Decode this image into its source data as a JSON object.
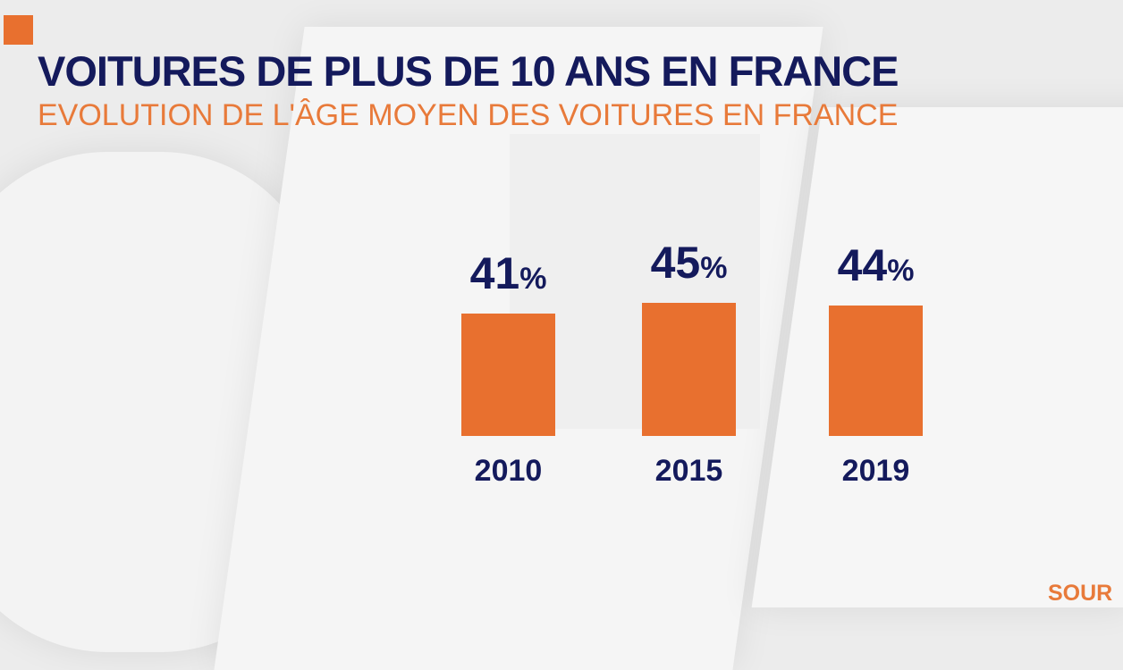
{
  "chart_data": {
    "type": "bar",
    "title": "VOITURES DE PLUS DE 10 ANS EN FRANCE",
    "subtitle": "EVOLUTION DE L'ÂGE MOYEN DES VOITURES EN FRANCE",
    "categories": [
      "2010",
      "2015",
      "2019"
    ],
    "values": [
      41,
      45,
      44
    ],
    "unit": "%",
    "xlabel": "",
    "ylabel": "",
    "bar_color": "#e8702f",
    "label_color": "#141a5c"
  },
  "source_label": "SOUR"
}
